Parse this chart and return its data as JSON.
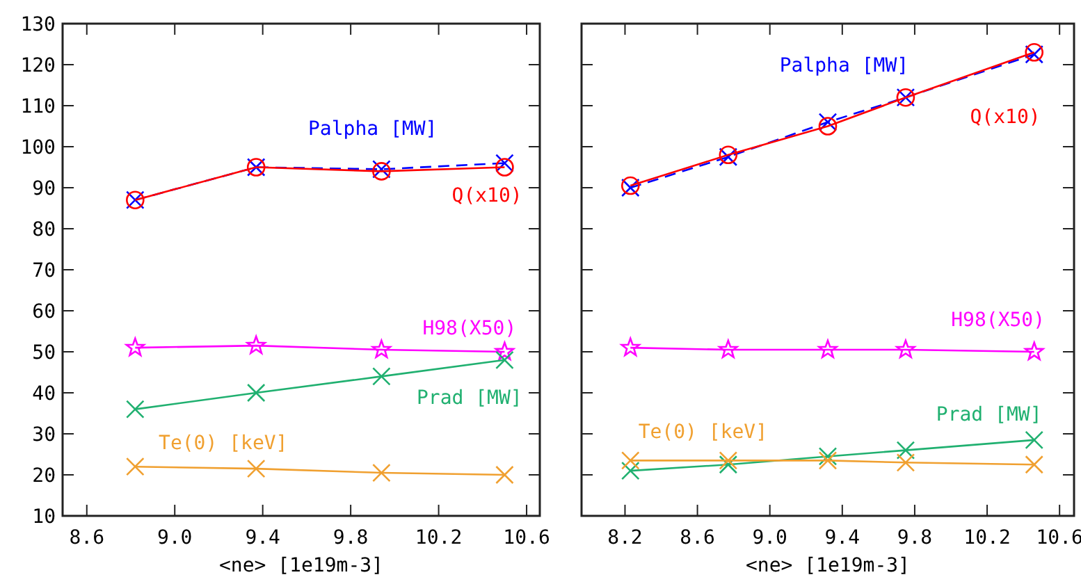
{
  "chart_data": [
    {
      "type": "line",
      "xlabel": "<ne> [1e19m-3]",
      "xlim": [
        8.49,
        10.66
      ],
      "xticks": [
        8.6,
        {
          "value": 9,
          "label": "9.0"
        },
        9.4,
        9.8,
        10.2,
        10.6
      ],
      "ylim": [
        10,
        130
      ],
      "yticks": [
        10,
        20,
        30,
        40,
        50,
        60,
        70,
        80,
        90,
        100,
        110,
        120,
        130
      ],
      "legend": false,
      "grid": false,
      "x": [
        8.82,
        9.37,
        9.94,
        10.5
      ],
      "series": [
        {
          "name": "Palpha [MW]",
          "color": "#0000ff",
          "values": [
            87,
            95,
            94.5,
            96
          ],
          "marker": "cross",
          "line_style": "dashed"
        },
        {
          "name": "Q(x10)",
          "color": "#ff0000",
          "values": [
            87,
            95,
            94,
            95
          ],
          "marker": "circle",
          "line_style": "solid"
        },
        {
          "name": "H98(X50)",
          "color": "#ff00ff",
          "values": [
            51,
            51.5,
            50.5,
            50
          ],
          "marker": "star",
          "line_style": "solid"
        },
        {
          "name": "Prad [MW]",
          "color": "#20b070",
          "values": [
            36,
            40,
            44,
            48
          ],
          "marker": "cross",
          "line_style": "solid"
        },
        {
          "name": "Te(0) [keV]",
          "color": "#f0a030",
          "values": [
            22,
            21.5,
            20.5,
            20
          ],
          "marker": "cross",
          "line_style": "solid"
        }
      ]
    },
    {
      "type": "line",
      "xlabel": "<ne> [1e19m-3]",
      "xlim": [
        7.96,
        10.68
      ],
      "xticks": [
        8.2,
        8.6,
        {
          "value": 9,
          "label": "9.0"
        },
        9.4,
        9.8,
        10.2,
        10.6
      ],
      "ylim": [
        10,
        130
      ],
      "yticks": [
        10,
        20,
        30,
        40,
        50,
        60,
        70,
        80,
        90,
        100,
        110,
        120,
        130
      ],
      "tick_labels": "x",
      "legend": false,
      "grid": false,
      "x": [
        8.23,
        8.77,
        9.32,
        9.75,
        10.46
      ],
      "series": [
        {
          "name": "Palpha [MW]",
          "color": "#0000ff",
          "values": [
            90,
            97.5,
            106,
            112,
            122.5
          ],
          "marker": "cross",
          "line_style": "dashed"
        },
        {
          "name": "Q(x10)",
          "color": "#ff0000",
          "values": [
            90.5,
            98,
            105,
            112,
            123
          ],
          "marker": "circle",
          "line_style": "solid"
        },
        {
          "name": "H98(X50)",
          "color": "#ff00ff",
          "values": [
            51,
            50.5,
            50.5,
            50.5,
            50
          ],
          "marker": "star",
          "line_style": "solid"
        },
        {
          "name": "Prad [MW]",
          "color": "#20b070",
          "values": [
            21,
            22.5,
            24.5,
            26,
            28.5
          ],
          "marker": "cross",
          "line_style": "solid"
        },
        {
          "name": "Te(0) [keV]",
          "color": "#f0a030",
          "values": [
            23.5,
            23.5,
            23.5,
            23,
            22.5
          ],
          "marker": "cross",
          "line_style": "solid"
        }
      ]
    }
  ]
}
